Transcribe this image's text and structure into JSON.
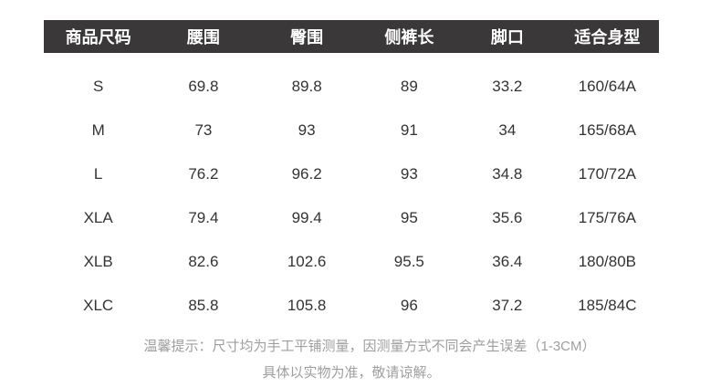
{
  "chart_data": {
    "type": "table",
    "title": "",
    "columns": [
      "商品尺码",
      "腰围",
      "臀围",
      "侧裤长",
      "脚口",
      "适合身型"
    ],
    "rows": [
      [
        "S",
        "69.8",
        "89.8",
        "89",
        "33.2",
        "160/64A"
      ],
      [
        "M",
        "73",
        "93",
        "91",
        "34",
        "165/68A"
      ],
      [
        "L",
        "76.2",
        "96.2",
        "93",
        "34.8",
        "170/72A"
      ],
      [
        "XLA",
        "79.4",
        "99.4",
        "95",
        "35.6",
        "175/76A"
      ],
      [
        "XLB",
        "82.6",
        "102.6",
        "95.5",
        "36.4",
        "180/80B"
      ],
      [
        "XLC",
        "85.8",
        "105.8",
        "96",
        "37.2",
        "185/84C"
      ]
    ],
    "notes": [
      "温馨提示：尺寸均为手工平铺测量，因测量方式不同会产生误差（1-3CM）",
      "具体以实物为准，敬请谅解。"
    ]
  },
  "colors": {
    "header_bg": "#3a3839",
    "header_text": "#ffffff",
    "body_text": "#333333",
    "note_text": "#9e9e9e",
    "page_bg": "#ffffff"
  }
}
